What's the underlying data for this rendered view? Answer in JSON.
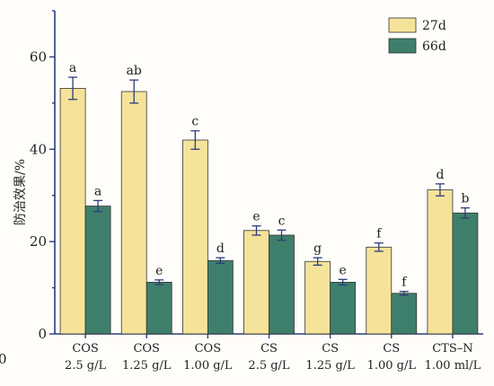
{
  "chart_data": {
    "type": "bar",
    "title": "",
    "ylabel": "防治效果/%",
    "xlabel": "",
    "ylim": [
      0,
      70
    ],
    "yticks": [
      0,
      20,
      40,
      60
    ],
    "grid": false,
    "legend_position": "top-right",
    "categories": [
      {
        "line1": "COS",
        "line2": "2.5 g/L"
      },
      {
        "line1": "COS",
        "line2": "1.25 g/L"
      },
      {
        "line1": "COS",
        "line2": "1.00 g/L"
      },
      {
        "line1": "CS",
        "line2": "2.5 g/L"
      },
      {
        "line1": "CS",
        "line2": "1.25 g/L"
      },
      {
        "line1": "CS",
        "line2": "1.00 g/L"
      },
      {
        "line1": "CTS–N",
        "line2": "1.00 ml/L"
      }
    ],
    "series": [
      {
        "name": "27d",
        "color": "#f5e39a",
        "values": [
          53.2,
          52.5,
          42.0,
          22.4,
          15.7,
          18.8,
          31.2
        ],
        "errors": [
          2.4,
          2.5,
          2.0,
          1.0,
          0.8,
          0.9,
          1.3
        ],
        "letters": [
          "a",
          "ab",
          "c",
          "e",
          "g",
          "f",
          "d"
        ]
      },
      {
        "name": "66d",
        "color": "#3e7f6c",
        "values": [
          27.7,
          11.2,
          15.9,
          21.4,
          11.2,
          8.8,
          26.2
        ],
        "errors": [
          1.2,
          0.5,
          0.6,
          1.1,
          0.6,
          0.4,
          1.1
        ],
        "letters": [
          "a",
          "e",
          "d",
          "c",
          "e",
          "f",
          "b"
        ]
      }
    ],
    "axis_color": "#2a3d7a",
    "error_color": "#2a3d7a",
    "stray_label": "0"
  }
}
